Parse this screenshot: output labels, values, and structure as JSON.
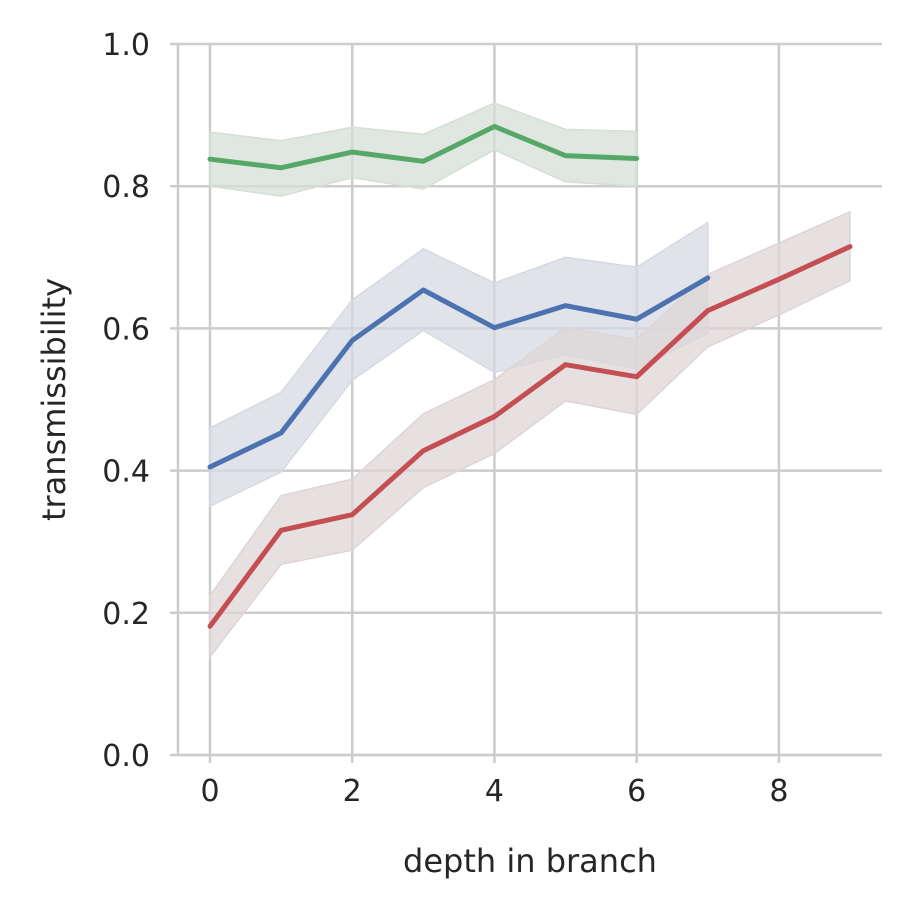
{
  "chart_data": {
    "type": "line",
    "title": "",
    "xlabel": "depth in branch",
    "ylabel": "transmissibility",
    "xlim": [
      -0.45,
      9.45
    ],
    "ylim": [
      0.0,
      1.0
    ],
    "xticks": [
      0,
      2,
      4,
      6,
      8
    ],
    "xtick_labels": [
      "0",
      "2",
      "4",
      "6",
      "8"
    ],
    "yticks": [
      0.0,
      0.2,
      0.4,
      0.6,
      0.8,
      1.0
    ],
    "ytick_labels": [
      "0.0",
      "0.2",
      "0.4",
      "0.6",
      "0.8",
      "1.0"
    ],
    "grid": true,
    "legend": "none",
    "series": [
      {
        "color": "#55a868",
        "band_color": "#d4dfd6",
        "x": [
          0,
          1,
          2,
          3,
          4,
          5,
          6
        ],
        "y": [
          0.838,
          0.826,
          0.848,
          0.835,
          0.884,
          0.843,
          0.839
        ],
        "lower": [
          0.8,
          0.786,
          0.812,
          0.796,
          0.851,
          0.806,
          0.8
        ],
        "upper": [
          0.876,
          0.864,
          0.883,
          0.873,
          0.917,
          0.88,
          0.877
        ]
      },
      {
        "color": "#4c72b0",
        "band_color": "#d6d9e1",
        "x": [
          0,
          1,
          2,
          3,
          4,
          5,
          6,
          7
        ],
        "y": [
          0.405,
          0.453,
          0.583,
          0.654,
          0.601,
          0.632,
          0.613,
          0.671
        ],
        "lower": [
          0.35,
          0.398,
          0.527,
          0.597,
          0.538,
          0.563,
          0.543,
          0.593
        ],
        "upper": [
          0.46,
          0.51,
          0.64,
          0.712,
          0.664,
          0.7,
          0.686,
          0.749
        ]
      },
      {
        "color": "#c44e52",
        "band_color": "#ddd5d6",
        "x": [
          0,
          1,
          2,
          3,
          4,
          5,
          6,
          7,
          8,
          9
        ],
        "y": [
          0.181,
          0.316,
          0.338,
          0.428,
          0.476,
          0.549,
          0.532,
          0.625,
          0.669,
          0.715
        ],
        "lower": [
          0.138,
          0.268,
          0.288,
          0.376,
          0.424,
          0.498,
          0.479,
          0.574,
          0.619,
          0.667
        ],
        "upper": [
          0.224,
          0.365,
          0.388,
          0.48,
          0.528,
          0.601,
          0.585,
          0.676,
          0.72,
          0.764
        ]
      }
    ]
  }
}
